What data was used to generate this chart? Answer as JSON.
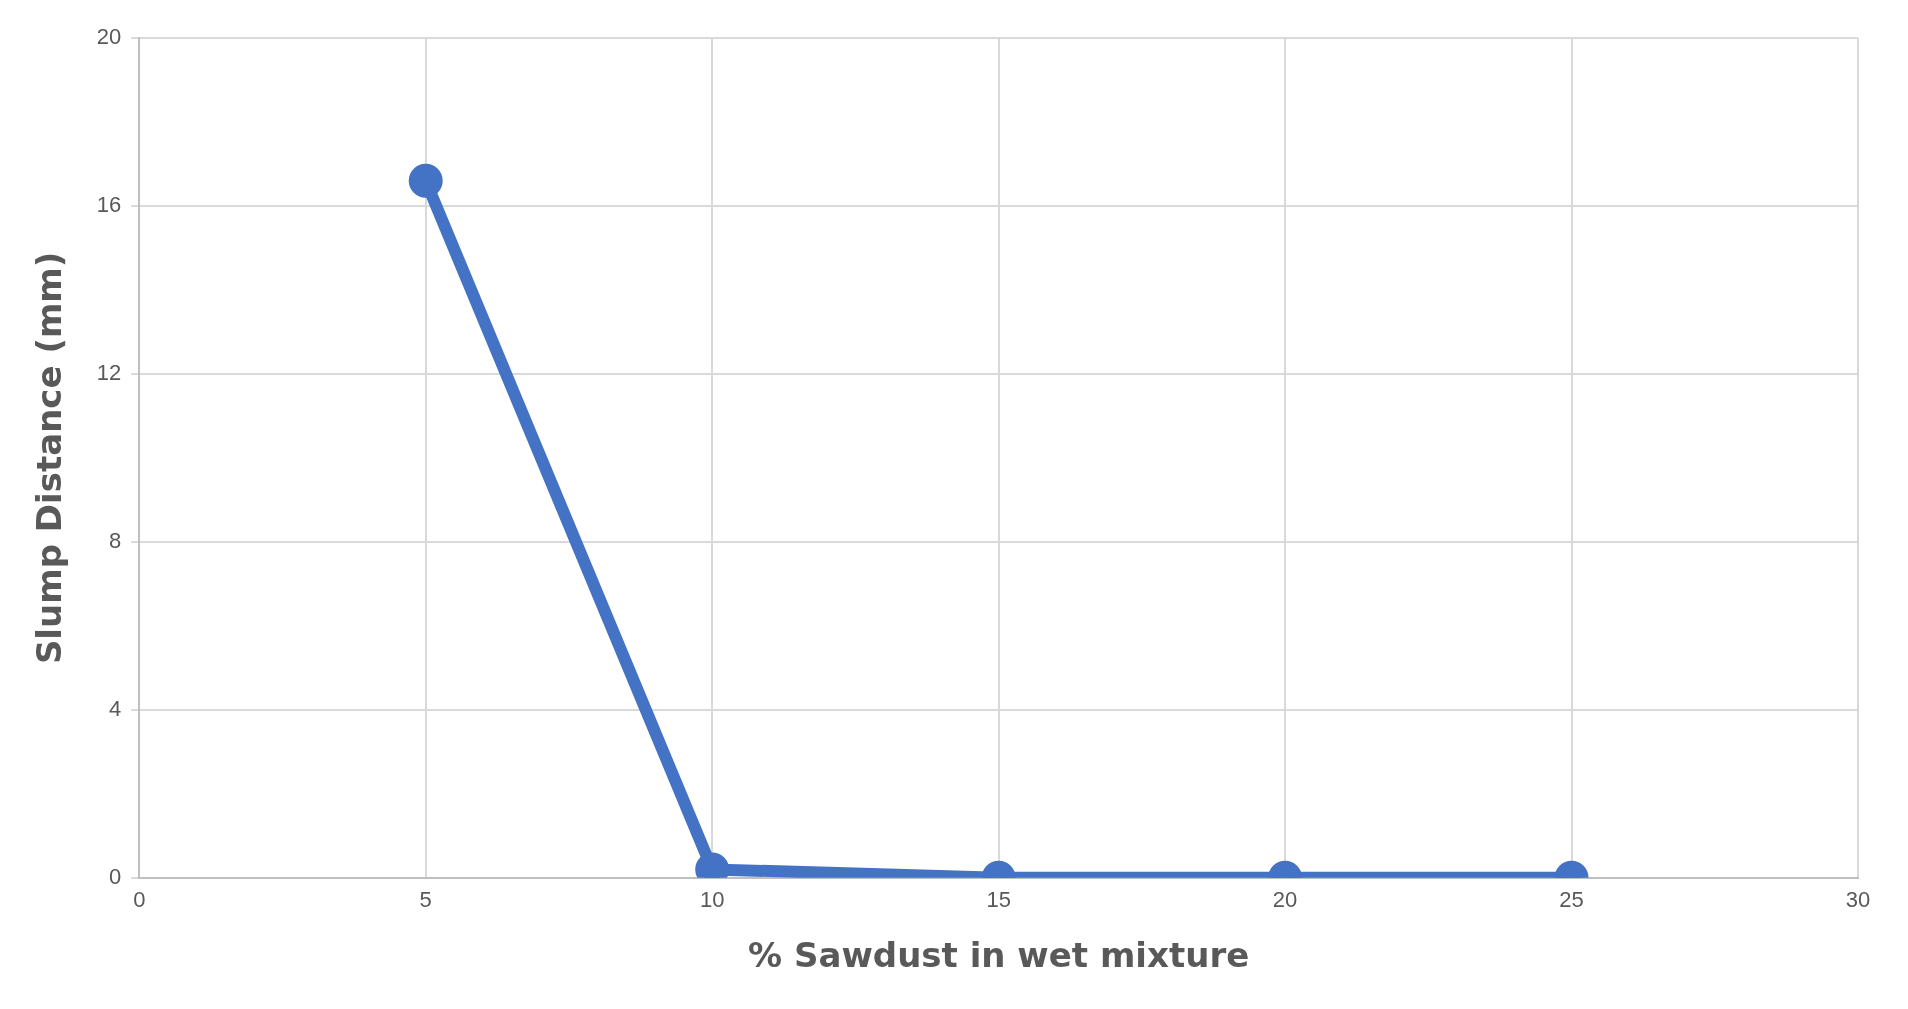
{
  "chart_data": {
    "type": "line",
    "xlabel": "% Sawdust in wet mixture",
    "ylabel": "Slump Distance (mm)",
    "x": [
      5,
      10,
      15,
      20,
      25
    ],
    "series": [
      {
        "color": "#4472c4",
        "values": [
          16.6,
          0.2,
          0,
          0,
          0
        ]
      }
    ],
    "xlim": [
      0,
      30
    ],
    "xticks": [
      0,
      5,
      10,
      15,
      20,
      25,
      30
    ],
    "ylim": [
      0,
      20
    ],
    "yticks": [
      0,
      4,
      8,
      12,
      16,
      20
    ],
    "grid": true,
    "marker": "circle",
    "line_style": "solid",
    "legend": false
  }
}
